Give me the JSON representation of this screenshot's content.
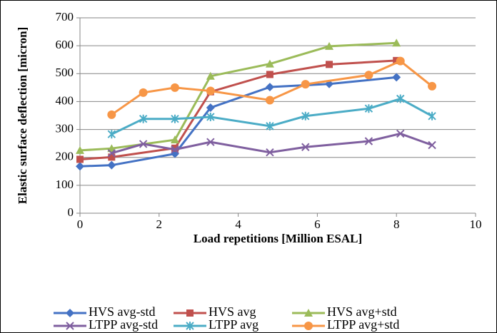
{
  "chart_data": {
    "type": "line",
    "x_label": "Load repetitions [Million ESAL]",
    "y_label": "Elastic surface deflection [micron]",
    "xlim": [
      0,
      10
    ],
    "xticks": [
      0,
      2,
      4,
      6,
      8,
      10
    ],
    "ylim": [
      0,
      700
    ],
    "yticks": [
      0,
      100,
      200,
      300,
      400,
      500,
      600,
      700
    ],
    "grid": true,
    "series": [
      {
        "name": "HVS avg-std",
        "color": "#4472c4",
        "marker": "diamond",
        "x": [
          0,
          0.8,
          2.4,
          3.3,
          4.8,
          6.3,
          8
        ],
        "values": [
          168,
          172,
          213,
          378,
          452,
          463,
          487
        ]
      },
      {
        "name": "HVS avg",
        "color": "#c0504d",
        "marker": "square",
        "x": [
          0,
          0.8,
          2.4,
          3.3,
          4.8,
          6.3,
          8
        ],
        "values": [
          193,
          201,
          233,
          435,
          497,
          533,
          547
        ]
      },
      {
        "name": "HVS avg+std",
        "color": "#9bbb59",
        "marker": "triangle",
        "x": [
          0,
          0.8,
          2.4,
          3.3,
          4.8,
          6.3,
          8
        ],
        "values": [
          225,
          232,
          263,
          491,
          535,
          598,
          610
        ]
      },
      {
        "name": "LTPP avg-std",
        "color": "#7f5f9f",
        "marker": "x",
        "x": [
          0.8,
          1.6,
          2.4,
          3.3,
          4.8,
          5.7,
          7.3,
          8.1,
          8.9
        ],
        "values": [
          215,
          248,
          228,
          255,
          218,
          237,
          258,
          285,
          244
        ]
      },
      {
        "name": "LTPP avg",
        "color": "#4bacc6",
        "marker": "star",
        "x": [
          0.8,
          1.6,
          2.4,
          3.3,
          4.8,
          5.7,
          7.3,
          8.1,
          8.9
        ],
        "values": [
          283,
          338,
          338,
          345,
          312,
          348,
          375,
          410,
          348
        ]
      },
      {
        "name": "LTPP avg+std",
        "color": "#f79646",
        "marker": "circle",
        "x": [
          0.8,
          1.6,
          2.4,
          3.3,
          4.8,
          5.7,
          7.3,
          8.1,
          8.9
        ],
        "values": [
          353,
          432,
          450,
          438,
          405,
          462,
          495,
          545,
          455
        ]
      }
    ]
  }
}
